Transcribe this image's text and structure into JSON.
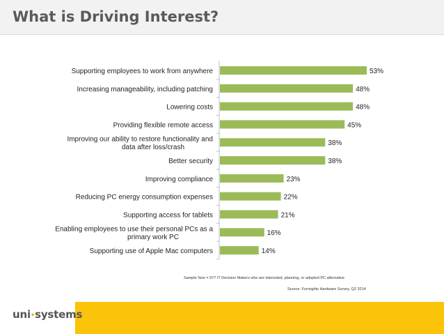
{
  "page": {
    "title": "What is Driving Interest?",
    "sample_note": "Sample Size = 977 IT Decision Makers who are interested, planning, or adopted PC alternative",
    "source_note": "Source: Forrsights Hardware Survey, Q2 2014",
    "logo": {
      "left": "uni",
      "dot": "•",
      "right": "systems"
    }
  },
  "colors": {
    "bar": "#9bbb59",
    "title": "#5a5a5a",
    "accent": "#fbc30a"
  },
  "chart_data": {
    "type": "bar",
    "orientation": "horizontal",
    "title": "",
    "categories": [
      [
        "Supporting employees to work from anywhere"
      ],
      [
        "Increasing manageability, including patching"
      ],
      [
        "Lowering costs"
      ],
      [
        "Providing flexible remote access"
      ],
      [
        "Improving our ability to restore functionality and",
        "data after loss/crash"
      ],
      [
        "Better security"
      ],
      [
        "Improving compliance"
      ],
      [
        "Reducing PC energy consumption expenses"
      ],
      [
        "Supporting access for tablets"
      ],
      [
        "Enabling employees to use their personal PCs as a",
        "primary work PC"
      ],
      [
        "Supporting use of Apple Mac computers"
      ]
    ],
    "values": [
      53,
      48,
      48,
      45,
      38,
      38,
      23,
      22,
      21,
      16,
      14
    ],
    "value_labels": [
      "53%",
      "48%",
      "48%",
      "45%",
      "38%",
      "38%",
      "23%",
      "22%",
      "21%",
      "16%",
      "14%"
    ],
    "xlim": [
      0,
      60
    ],
    "unit": "%",
    "grid": false
  }
}
